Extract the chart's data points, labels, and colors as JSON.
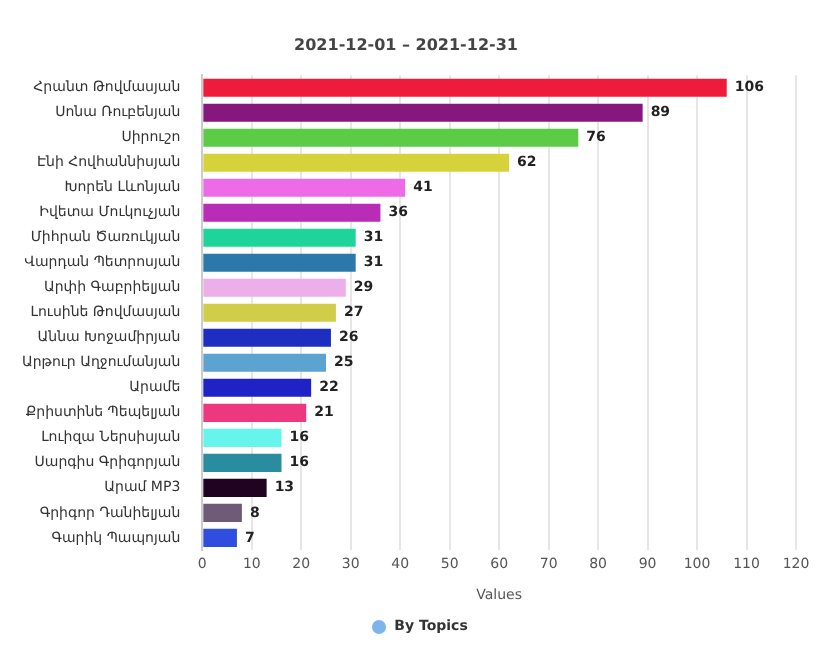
{
  "chart_data": {
    "type": "bar",
    "orientation": "horizontal",
    "title": "2021-12-01 – 2021-12-31",
    "xlabel": "Values",
    "categories": [
      "Հրանտ Թովմասյան",
      "Սոնա Ռուբենյան",
      "Սիրուշո",
      "Էնի Հովհաննիսյան",
      "Խորեն Լևոնյան",
      "Իվետա Մուկուչյան",
      "Միհրան Ծառուկյան",
      "Վարդան Պետրոսյան",
      "Արփի Գաբրիելյան",
      "Լուսինե Թովմասյան",
      "Աննա Խոջամիրյան",
      "Արթուր Աղջումանյան",
      "Արամե",
      "Քրիստինե Պեպելյան",
      "Լուիզա Ներսիսյան",
      "Սարգիս Գրիգորյան",
      "Արամ MP3",
      "Գրիգոր Դանիելյան",
      "Գարիկ Պապոյան"
    ],
    "series": [
      {
        "name": "By Topics",
        "color": "#7cb5ec",
        "values": [
          106,
          89,
          76,
          62,
          41,
          36,
          31,
          31,
          29,
          27,
          26,
          25,
          22,
          21,
          16,
          16,
          13,
          8,
          7
        ],
        "colors": [
          "#ee1c3a",
          "#86177e",
          "#5ccb45",
          "#d5d23a",
          "#ee6be8",
          "#b82cb8",
          "#1ed49a",
          "#2c78aa",
          "#ecafe9",
          "#d0cd48",
          "#1d2ec1",
          "#5ca3d2",
          "#1f23c6",
          "#ed3880",
          "#66f5ec",
          "#2a8c9f",
          "#200320",
          "#6f5a77",
          "#2f4ee0"
        ]
      }
    ],
    "xlim": [
      0,
      120
    ],
    "xticks": [
      0,
      10,
      20,
      30,
      40,
      50,
      60,
      70,
      80,
      90,
      100,
      110,
      120
    ],
    "grid": "x",
    "legend": "bottom",
    "data_labels": true
  }
}
